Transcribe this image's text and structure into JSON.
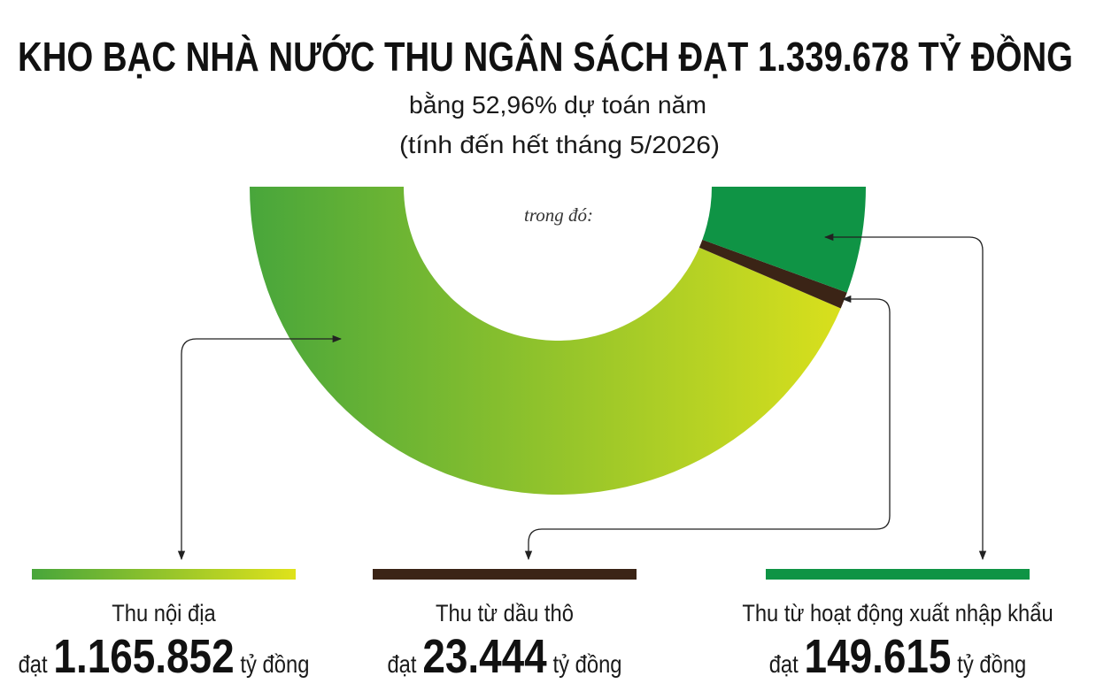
{
  "chart_data": {
    "type": "half-donut",
    "title": "KHO BẠC NHÀ NƯỚC THU NGÂN SÁCH ĐẠT 1.339.678 TỶ ĐỒNG",
    "subtitle": [
      "bằng 52,96% dự toán năm",
      "(tính đến hết tháng 5/2026)"
    ],
    "annotation": "trong đó:",
    "categories": [
      "Thu nội địa",
      "Thu từ dầu thô",
      "Thu từ hoạt động xuất nhập khẩu"
    ],
    "values": [
      1165852,
      23444,
      149615
    ],
    "value_labels": [
      "1.165.852",
      "23.444",
      "149.615"
    ],
    "value_prefix": "đạt",
    "value_unit": "tỷ đồng",
    "colors": [
      [
        "#48a63b",
        "#dfe21b"
      ],
      "#3b2416",
      "#0f9445"
    ]
  }
}
